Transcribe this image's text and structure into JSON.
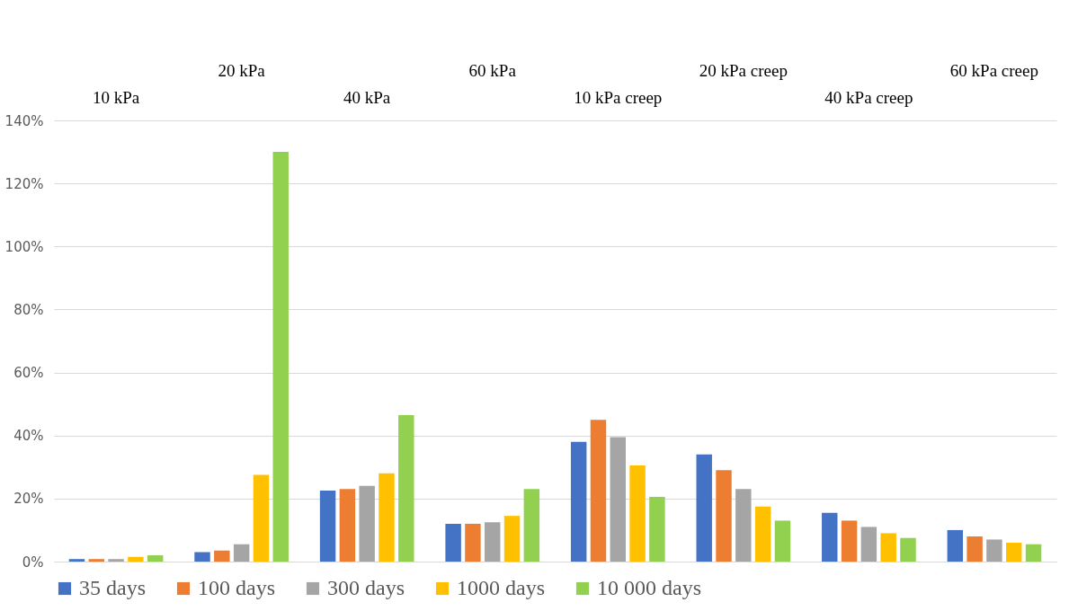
{
  "chart_data": {
    "type": "bar",
    "categories": [
      "10 kPa",
      "20 kPa",
      "40 kPa",
      "60 kPa",
      "10 kPa creep",
      "20 kPa creep",
      "40 kPa creep",
      "60 kPa creep"
    ],
    "series": [
      {
        "name": "35 days",
        "color": "#4472c4",
        "values": [
          0.8,
          3,
          22.5,
          12,
          38,
          34,
          15.5,
          10
        ]
      },
      {
        "name": "100 days",
        "color": "#ed7d31",
        "values": [
          0.8,
          3.5,
          23,
          12,
          45,
          29,
          13,
          8
        ]
      },
      {
        "name": "300 days",
        "color": "#a5a5a5",
        "values": [
          0.8,
          5.5,
          24,
          12.5,
          39.5,
          23,
          11,
          7
        ]
      },
      {
        "name": "1000 days",
        "color": "#ffc000",
        "values": [
          1.5,
          27.5,
          28,
          14.5,
          30.5,
          17.5,
          9,
          6
        ]
      },
      {
        "name": "10 000 days",
        "color": "#92d050",
        "values": [
          2,
          130,
          46.5,
          23,
          20.5,
          13,
          7.5,
          5.5
        ]
      }
    ],
    "ylim": [
      0,
      140
    ],
    "yticks": [
      {
        "value": 0,
        "label": "0%"
      },
      {
        "value": 20,
        "label": "20%"
      },
      {
        "value": 40,
        "label": "40%"
      },
      {
        "value": 60,
        "label": "60%"
      },
      {
        "value": 80,
        "label": "80%"
      },
      {
        "value": 100,
        "label": "100%"
      },
      {
        "value": 120,
        "label": "120%"
      },
      {
        "value": 140,
        "label": "140%"
      }
    ],
    "grid": "y",
    "legend": "bottom"
  }
}
